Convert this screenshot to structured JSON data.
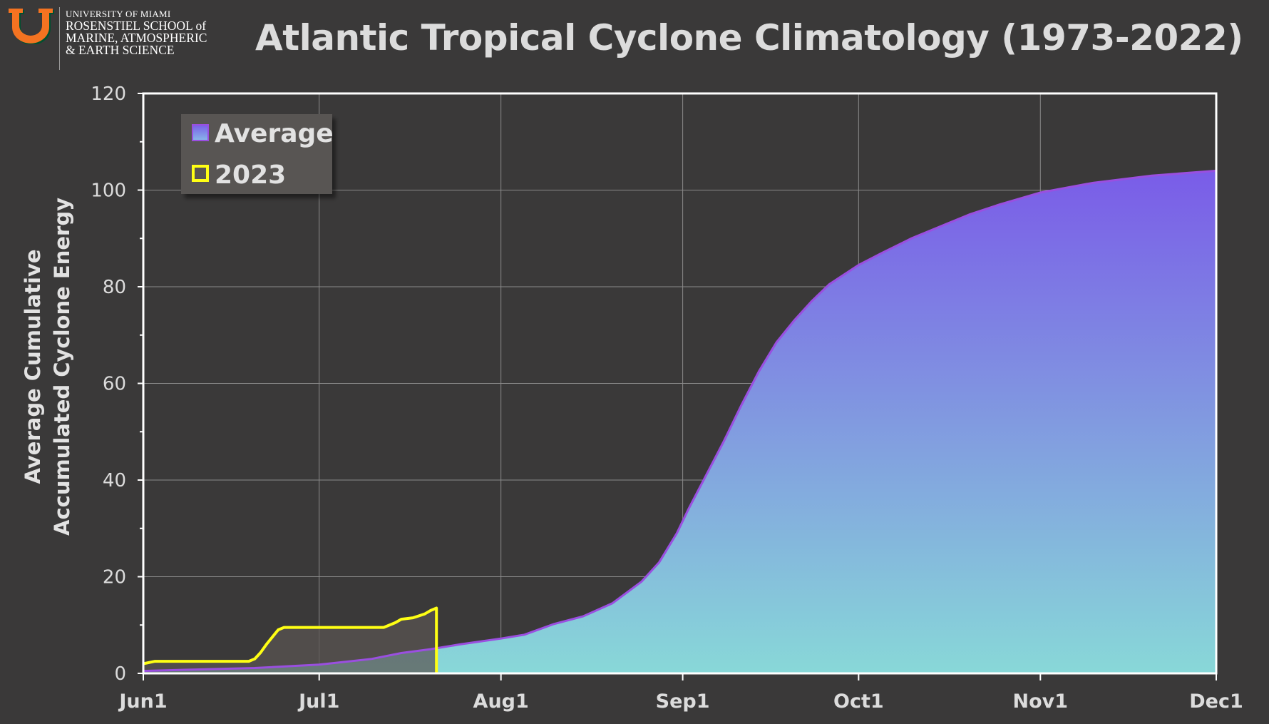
{
  "header": {
    "logo_line1": "UNIVERSITY OF MIAMI",
    "logo_line2": "ROSENSTIEL SCHOOL of",
    "logo_line3": "MARINE, ATMOSPHERIC",
    "logo_line4": "& EARTH SCIENCE",
    "logo_colors": {
      "orange": "#f47321",
      "green": "#005030"
    }
  },
  "chart_data": {
    "type": "area",
    "title": "Atlantic Tropical Cyclone Climatology (1973-2022)",
    "ylabel_line1": "Average Cumulative",
    "ylabel_line2": "Accumulated Cyclone Energy",
    "xlabel": "",
    "ylim": [
      0,
      120
    ],
    "yticks": [
      0,
      20,
      40,
      60,
      80,
      100,
      120
    ],
    "x_ticks": [
      {
        "label": "Jun1",
        "date": "2023-06-01"
      },
      {
        "label": "Jul1",
        "date": "2023-07-01"
      },
      {
        "label": "Aug1",
        "date": "2023-08-01"
      },
      {
        "label": "Sep1",
        "date": "2023-09-01"
      },
      {
        "label": "Oct1",
        "date": "2023-10-01"
      },
      {
        "label": "Nov1",
        "date": "2023-11-01"
      },
      {
        "label": "Dec1",
        "date": "2023-12-01"
      }
    ],
    "grid": true,
    "legend_position": "top-left",
    "series": [
      {
        "name": "Average",
        "style": "area",
        "colors": {
          "top": "#7a5ce8",
          "bottom": "#88d8d8",
          "line": "#9a4fe0"
        },
        "points": [
          [
            "2023-06-01",
            0.5
          ],
          [
            "2023-06-10",
            0.8
          ],
          [
            "2023-06-20",
            1.1
          ],
          [
            "2023-07-01",
            1.8
          ],
          [
            "2023-07-10",
            3.0
          ],
          [
            "2023-07-15",
            4.2
          ],
          [
            "2023-07-20",
            5.0
          ],
          [
            "2023-07-25",
            6.0
          ],
          [
            "2023-08-01",
            7.2
          ],
          [
            "2023-08-05",
            8.0
          ],
          [
            "2023-08-10",
            10.2
          ],
          [
            "2023-08-15",
            11.8
          ],
          [
            "2023-08-20",
            14.5
          ],
          [
            "2023-08-25",
            19.0
          ],
          [
            "2023-08-28",
            23.0
          ],
          [
            "2023-08-31",
            29.0
          ],
          [
            "2023-09-02",
            34.0
          ],
          [
            "2023-09-05",
            41.0
          ],
          [
            "2023-09-08",
            48.0
          ],
          [
            "2023-09-11",
            55.5
          ],
          [
            "2023-09-14",
            62.5
          ],
          [
            "2023-09-17",
            68.5
          ],
          [
            "2023-09-20",
            73.0
          ],
          [
            "2023-09-23",
            77.0
          ],
          [
            "2023-09-26",
            80.5
          ],
          [
            "2023-10-01",
            84.5
          ],
          [
            "2023-10-05",
            87.0
          ],
          [
            "2023-10-10",
            90.0
          ],
          [
            "2023-10-15",
            92.5
          ],
          [
            "2023-10-20",
            95.0
          ],
          [
            "2023-10-25",
            97.0
          ],
          [
            "2023-11-01",
            99.5
          ],
          [
            "2023-11-10",
            101.5
          ],
          [
            "2023-11-20",
            103.0
          ],
          [
            "2023-12-01",
            104.0
          ]
        ]
      },
      {
        "name": "2023",
        "style": "line",
        "colors": {
          "line": "#ffff14",
          "fill": "#5a5552"
        },
        "points": [
          [
            "2023-06-01",
            2.0
          ],
          [
            "2023-06-03",
            2.5
          ],
          [
            "2023-06-19",
            2.5
          ],
          [
            "2023-06-20",
            3.0
          ],
          [
            "2023-06-21",
            4.3
          ],
          [
            "2023-06-22",
            6.0
          ],
          [
            "2023-06-23",
            7.5
          ],
          [
            "2023-06-24",
            9.0
          ],
          [
            "2023-06-25",
            9.5
          ],
          [
            "2023-07-12",
            9.5
          ],
          [
            "2023-07-14",
            10.5
          ],
          [
            "2023-07-15",
            11.2
          ],
          [
            "2023-07-17",
            11.5
          ],
          [
            "2023-07-19",
            12.3
          ],
          [
            "2023-07-20",
            13.0
          ],
          [
            "2023-07-21",
            13.5
          ],
          [
            "2023-07-21",
            0
          ]
        ]
      }
    ]
  }
}
